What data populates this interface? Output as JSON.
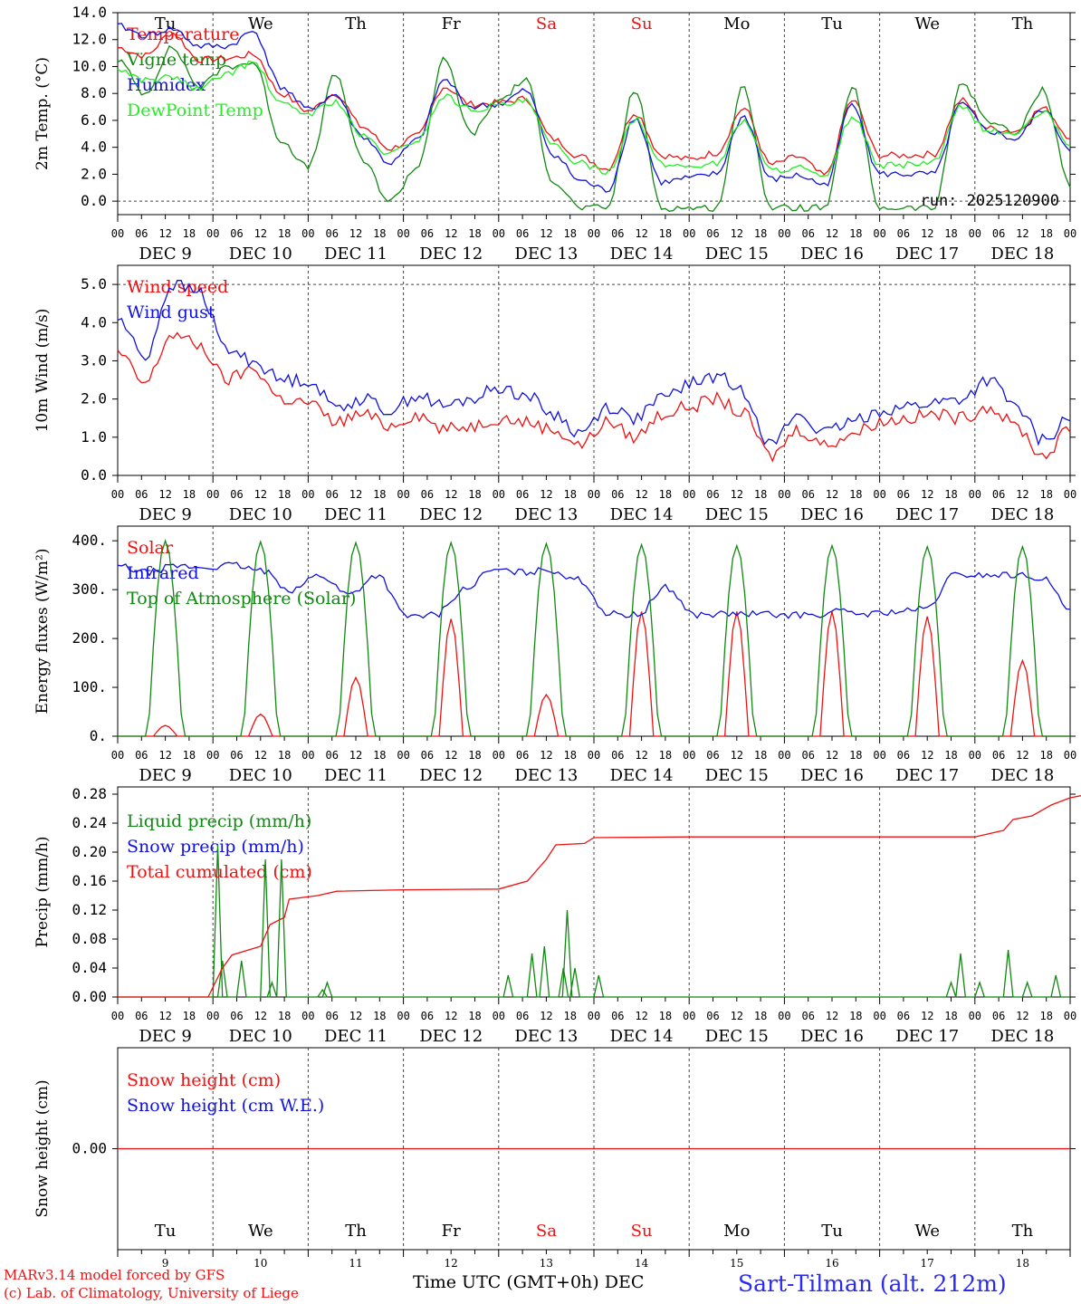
{
  "footer": {
    "model": "MARv3.14 model forced by GFS",
    "copyright": "(c) Lab. of Climatology, University of Liege",
    "axis_title": "Time UTC (GMT+0h) DEC",
    "station": "Sart-Tilman (alt. 212m)",
    "run": "run: 2025120900"
  },
  "colors": {
    "red": "#ee1111",
    "green": "#118811",
    "blue": "#1111dd",
    "lightgreen": "#22ee22",
    "weekend": "#ee1111",
    "grid": "#333333"
  },
  "time_axis": {
    "days": [
      "DEC  9",
      "DEC 10",
      "DEC 11",
      "DEC 12",
      "DEC 13",
      "DEC 14",
      "DEC 15",
      "DEC 16",
      "DEC 17",
      "DEC 18"
    ],
    "hour_ticks": [
      "00",
      "06",
      "12",
      "18"
    ],
    "weekdays": [
      "Tu",
      "We",
      "Th",
      "Fr",
      "Sa",
      "Su",
      "Mo",
      "Tu",
      "We",
      "Th"
    ],
    "weekend_days": [
      "Sa",
      "Su"
    ],
    "day_numbers": [
      "9",
      "10",
      "11",
      "12",
      "13",
      "14",
      "15",
      "16",
      "17",
      "18"
    ],
    "points_per_day": 24
  },
  "chart_data": [
    {
      "type": "line",
      "ylabel": "2m Temp. (°C)",
      "ylim": [
        -1,
        14
      ],
      "yticks": [
        "0.0",
        "2.0",
        "4.0",
        "6.0",
        "8.0",
        "10.0",
        "12.0",
        "14.0"
      ],
      "yticks_values": [
        0,
        2,
        4,
        6,
        8,
        10,
        12,
        14
      ],
      "refline": 0,
      "series": [
        {
          "name": "Temperature",
          "color": "red",
          "anchors": [
            11.4,
            10.8,
            12.5,
            10.5,
            10.6,
            10.9,
            8.0,
            6.7,
            8.0,
            5.5,
            3.9,
            4.8,
            8.5,
            7.2,
            7.3,
            7.6,
            4.6,
            3.3,
            2.4,
            6.6,
            3.4,
            3.1,
            3.6,
            6.9,
            2.7,
            3.3,
            1.9,
            7.5,
            3.4,
            3.4,
            3.5,
            7.5,
            5.4,
            5.2,
            6.9,
            4.8
          ]
        },
        {
          "name": "Vigne temp",
          "color": "green",
          "anchors": [
            10.5,
            8.0,
            11.4,
            8.5,
            10.0,
            10.3,
            4.5,
            2.5,
            9.4,
            3.0,
            0.0,
            2.5,
            10.5,
            5.0,
            7.5,
            9.0,
            1.5,
            -0.5,
            -0.5,
            8.3,
            -0.5,
            -0.5,
            -0.5,
            8.5,
            -0.5,
            -0.5,
            -0.5,
            8.5,
            -0.5,
            -0.5,
            -0.5,
            8.8,
            6.0,
            5.0,
            8.3,
            1.2
          ]
        },
        {
          "name": "Humidex",
          "color": "blue",
          "anchors": [
            13.0,
            12.3,
            12.8,
            11.5,
            11.5,
            12.6,
            8.5,
            6.8,
            7.9,
            4.8,
            2.8,
            4.5,
            9.0,
            7.0,
            7.2,
            8.2,
            3.5,
            1.5,
            0.8,
            6.2,
            1.4,
            1.7,
            2.0,
            6.3,
            1.6,
            1.9,
            1.2,
            7.3,
            2.0,
            2.0,
            2.0,
            7.2,
            5.2,
            4.6,
            6.8,
            3.9
          ]
        },
        {
          "name": "DewPoint Temp",
          "color": "lightgreen",
          "anchors": [
            9.8,
            9.0,
            9.2,
            8.3,
            9.5,
            10.3,
            7.2,
            6.5,
            7.4,
            4.8,
            3.5,
            4.5,
            7.8,
            6.8,
            7.1,
            7.4,
            4.1,
            2.8,
            2.2,
            6.1,
            2.7,
            2.6,
            2.8,
            6.0,
            2.3,
            2.5,
            1.7,
            6.3,
            2.6,
            2.7,
            2.9,
            7.0,
            5.2,
            5.0,
            6.6,
            4.3
          ]
        }
      ]
    },
    {
      "type": "line",
      "ylabel": "10m Wind (m/s)",
      "ylim": [
        0,
        5.5
      ],
      "yticks": [
        "0.0",
        "1.0",
        "2.0",
        "3.0",
        "4.0",
        "5.0"
      ],
      "yticks_values": [
        0,
        1,
        2,
        3,
        4,
        5
      ],
      "refline": 5,
      "series": [
        {
          "name": "Wind speed",
          "color": "red",
          "anchors": [
            3.2,
            2.4,
            3.7,
            3.4,
            2.5,
            2.8,
            2.0,
            1.9,
            1.4,
            1.6,
            1.3,
            1.6,
            1.2,
            1.3,
            1.5,
            1.4,
            1.2,
            0.8,
            1.4,
            1.0,
            1.6,
            1.8,
            2.0,
            1.6,
            0.5,
            1.2,
            0.8,
            1.1,
            1.4,
            1.5,
            1.6,
            1.5,
            1.8,
            1.3,
            0.5,
            1.2
          ]
        },
        {
          "name": "Wind gust",
          "color": "blue",
          "anchors": [
            4.1,
            3.1,
            5.0,
            4.8,
            3.3,
            3.0,
            2.5,
            2.5,
            1.8,
            2.0,
            1.7,
            2.1,
            1.8,
            2.0,
            2.3,
            2.1,
            1.6,
            1.1,
            1.8,
            1.5,
            2.0,
            2.4,
            2.6,
            2.2,
            0.8,
            1.6,
            1.1,
            1.4,
            1.7,
            1.8,
            1.9,
            2.0,
            2.5,
            1.8,
            0.9,
            1.5
          ]
        }
      ]
    },
    {
      "type": "line",
      "ylabel": "Energy fluxes (W/m²)",
      "ylim": [
        0,
        430
      ],
      "yticks": [
        "0.",
        "100.",
        "200.",
        "300.",
        "400."
      ],
      "yticks_values": [
        0,
        100,
        200,
        300,
        400
      ],
      "series": [
        {
          "name": "Solar",
          "color": "red",
          "peaks": [
            22,
            45,
            120,
            240,
            85,
            255,
            255,
            255,
            245,
            155
          ]
        },
        {
          "name": "Infrared",
          "color": "blue",
          "anchors": [
            348,
            335,
            348,
            345,
            350,
            338,
            300,
            330,
            290,
            330,
            245,
            248,
            300,
            340,
            335,
            340,
            320,
            250,
            248,
            305,
            248,
            250,
            250,
            248,
            248,
            255,
            250,
            255,
            260,
            330,
            330,
            330,
            325,
            260
          ]
        },
        {
          "name": "Top of Atmosphere (Solar)",
          "color": "green",
          "peaks": [
            400,
            398,
            396,
            396,
            394,
            392,
            390,
            390,
            388,
            388
          ]
        }
      ]
    },
    {
      "type": "line",
      "ylabel": "Precip (mm/h)",
      "ylim": [
        0,
        0.29
      ],
      "yticks": [
        "0.00",
        "0.04",
        "0.08",
        "0.12",
        "0.16",
        "0.20",
        "0.24",
        "0.28"
      ],
      "yticks_values": [
        0,
        0.04,
        0.08,
        0.12,
        0.16,
        0.2,
        0.24,
        0.28
      ],
      "series": [
        {
          "name": "Liquid precip (mm/h)",
          "color": "green",
          "spikes": [
            [
              1.05,
              0.21
            ],
            [
              1.1,
              0.05
            ],
            [
              1.3,
              0.05
            ],
            [
              1.55,
              0.19
            ],
            [
              1.72,
              0.19
            ],
            [
              1.62,
              0.02
            ],
            [
              2.15,
              0.01
            ],
            [
              2.2,
              0.02
            ],
            [
              4.1,
              0.03
            ],
            [
              4.35,
              0.06
            ],
            [
              4.48,
              0.07
            ],
            [
              4.68,
              0.04
            ],
            [
              4.72,
              0.12
            ],
            [
              4.8,
              0.04
            ],
            [
              5.05,
              0.03
            ],
            [
              8.75,
              0.02
            ],
            [
              8.85,
              0.06
            ],
            [
              9.05,
              0.02
            ],
            [
              9.35,
              0.065
            ],
            [
              9.55,
              0.02
            ],
            [
              9.85,
              0.03
            ]
          ]
        },
        {
          "name": "Snow precip (mm/h)",
          "color": "blue",
          "values": []
        },
        {
          "name": "Total cumulated (cm)",
          "color": "red",
          "cumulative": [
            [
              0,
              0
            ],
            [
              0.95,
              0
            ],
            [
              1.1,
              0.04
            ],
            [
              1.2,
              0.058
            ],
            [
              1.5,
              0.07
            ],
            [
              1.6,
              0.1
            ],
            [
              1.75,
              0.11
            ],
            [
              1.8,
              0.135
            ],
            [
              2.1,
              0.14
            ],
            [
              2.3,
              0.146
            ],
            [
              3.0,
              0.148
            ],
            [
              4.0,
              0.149
            ],
            [
              4.3,
              0.16
            ],
            [
              4.5,
              0.19
            ],
            [
              4.6,
              0.21
            ],
            [
              4.9,
              0.212
            ],
            [
              5.0,
              0.22
            ],
            [
              6.0,
              0.221
            ],
            [
              9.0,
              0.221
            ],
            [
              9.3,
              0.23
            ],
            [
              9.4,
              0.245
            ],
            [
              9.6,
              0.25
            ],
            [
              9.8,
              0.265
            ],
            [
              10.0,
              0.275
            ],
            [
              10.2,
              0.28
            ],
            [
              10.4,
              0.282
            ],
            [
              10.5,
              0.282
            ]
          ]
        }
      ]
    },
    {
      "type": "line",
      "ylabel": "Snow height (cm)",
      "ylim": [
        -1,
        1
      ],
      "yticks": [
        "0.00"
      ],
      "yticks_values": [
        0
      ],
      "series": [
        {
          "name": "Snow height (cm)",
          "color": "red",
          "constant": 0
        },
        {
          "name": "Snow height (cm W.E.)",
          "color": "blue",
          "values": []
        }
      ]
    }
  ]
}
